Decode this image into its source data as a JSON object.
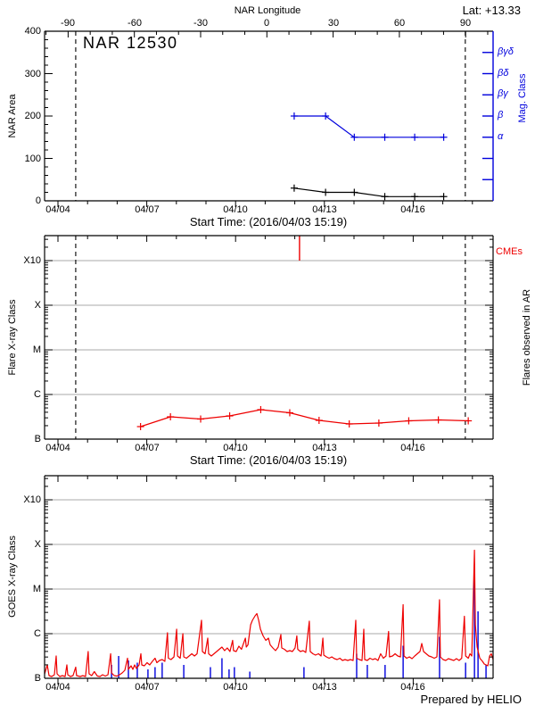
{
  "header": {
    "lon_axis_title": "NAR Longitude",
    "lat_label": "Lat: +13.33"
  },
  "footer": {
    "credit": "Prepared by HELIO"
  },
  "time_axis": {
    "start_time_label": "Start Time: (2016/04/03 15:19)",
    "tick_labels": [
      "04/04",
      "04/07",
      "04/10",
      "04/13",
      "04/16"
    ],
    "tick_days": [
      0,
      3,
      6,
      9,
      12
    ],
    "days_range": [
      -0.45,
      14.7
    ]
  },
  "longitude_axis": {
    "tick_labels": [
      "-90",
      "-60",
      "-30",
      "0",
      "30",
      "60",
      "90"
    ],
    "tick_values": [
      -90,
      -60,
      -30,
      0,
      30,
      60,
      90
    ],
    "minor_step_deg": 10
  },
  "colors": {
    "data_red": "#ee0000",
    "data_blue": "#0000dd",
    "grid_gray": "#a8a8a8",
    "axis_black": "#000000"
  },
  "chart_data": [
    {
      "id": "nar-area-mag-panel",
      "type": "line",
      "title": "NAR 12530",
      "ylabel": "NAR Area",
      "ylabel_right": "Mag. Class",
      "ylim": [
        0,
        400
      ],
      "yticks": [
        0,
        100,
        200,
        300,
        400
      ],
      "y_minor_step": 20,
      "x_days": [
        7.98,
        9.04,
        10.01,
        11.04,
        12.05,
        13.03
      ],
      "area_values": [
        30,
        20,
        20,
        10,
        10,
        10
      ],
      "mag_class_labels": [
        "β",
        "β",
        "α",
        "α",
        "α",
        "α"
      ],
      "mag_class_area_scale": [
        200,
        200,
        150,
        150,
        150,
        150
      ],
      "mag_axis_ticks": [
        {
          "area": 50,
          "label": ""
        },
        {
          "area": 100,
          "label": ""
        },
        {
          "area": 150,
          "label": "α"
        },
        {
          "area": 200,
          "label": "β"
        },
        {
          "area": 250,
          "label": "βγ"
        },
        {
          "area": 300,
          "label": "βδ"
        },
        {
          "area": 350,
          "label": "βγδ"
        }
      ],
      "limb_crossing_days": [
        0.6,
        13.76
      ]
    },
    {
      "id": "flares-in-ar-panel",
      "type": "line",
      "ylabel": "Flare X-ray Class",
      "right_label": "Flares observed in AR",
      "cme_label": "CMEs",
      "ytick_labels": [
        "B",
        "C",
        "M",
        "X",
        "X10"
      ],
      "ytick_levels": [
        0,
        1,
        2,
        3,
        4
      ],
      "ytop_level": 4.56,
      "flare_x_days": [
        2.79,
        3.8,
        4.82,
        5.8,
        6.85,
        7.83,
        8.82,
        9.84,
        10.84,
        11.85,
        12.85,
        13.86
      ],
      "flare_levels_above_B": [
        0.28,
        0.5,
        0.45,
        0.52,
        0.66,
        0.59,
        0.42,
        0.34,
        0.36,
        0.41,
        0.43,
        0.41
      ],
      "flare_class_labels": [
        "B1.9",
        "B3.2",
        "B2.8",
        "B3.3",
        "B4.6",
        "B3.9",
        "B2.6",
        "B2.2",
        "B2.3",
        "B2.6",
        "B2.7",
        "B2.6"
      ],
      "cme_days": [
        8.16
      ],
      "limb_crossing_days": [
        0.6,
        13.76
      ]
    },
    {
      "id": "goes-xray-panel",
      "type": "line",
      "ylabel": "GOES X-ray Class",
      "ytick_labels": [
        "B",
        "C",
        "M",
        "X",
        "X10"
      ],
      "ytick_levels": [
        0,
        1,
        2,
        3,
        4
      ],
      "ytop_level": 4.54,
      "flux_series_day_level": [
        [
          -0.45,
          0.1
        ],
        [
          -0.36,
          0.3
        ],
        [
          -0.3,
          0.06
        ],
        [
          -0.21,
          0.04
        ],
        [
          -0.12,
          0.08
        ],
        [
          -0.06,
          0.5
        ],
        [
          -0.03,
          0.1
        ],
        [
          0.06,
          0.04
        ],
        [
          0.15,
          0.06
        ],
        [
          0.24,
          0.04
        ],
        [
          0.3,
          0.3
        ],
        [
          0.33,
          0.08
        ],
        [
          0.42,
          0.04
        ],
        [
          0.51,
          0.06
        ],
        [
          0.6,
          0.25
        ],
        [
          0.63,
          0.06
        ],
        [
          0.75,
          0.04
        ],
        [
          0.84,
          0.06
        ],
        [
          0.93,
          0.04
        ],
        [
          1.02,
          0.6
        ],
        [
          1.05,
          0.1
        ],
        [
          1.14,
          0.06
        ],
        [
          1.23,
          0.15
        ],
        [
          1.33,
          0.05
        ],
        [
          1.42,
          0.04
        ],
        [
          1.51,
          0.08
        ],
        [
          1.6,
          0.05
        ],
        [
          1.69,
          0.08
        ],
        [
          1.78,
          0.55
        ],
        [
          1.81,
          0.12
        ],
        [
          1.9,
          0.06
        ],
        [
          1.99,
          0.05
        ],
        [
          2.08,
          0.08
        ],
        [
          2.17,
          0.12
        ],
        [
          2.26,
          0.18
        ],
        [
          2.35,
          0.45
        ],
        [
          2.38,
          0.2
        ],
        [
          2.47,
          0.28
        ],
        [
          2.53,
          0.2
        ],
        [
          2.59,
          0.3
        ],
        [
          2.65,
          0.22
        ],
        [
          2.74,
          0.3
        ],
        [
          2.8,
          0.55
        ],
        [
          2.83,
          0.3
        ],
        [
          2.92,
          0.28
        ],
        [
          3.01,
          0.35
        ],
        [
          3.1,
          0.3
        ],
        [
          3.19,
          0.38
        ],
        [
          3.28,
          0.45
        ],
        [
          3.34,
          0.35
        ],
        [
          3.43,
          0.4
        ],
        [
          3.52,
          0.42
        ],
        [
          3.61,
          0.38
        ],
        [
          3.7,
          1.02
        ],
        [
          3.73,
          0.45
        ],
        [
          3.82,
          0.42
        ],
        [
          3.92,
          0.48
        ],
        [
          4.01,
          1.1
        ],
        [
          4.04,
          0.5
        ],
        [
          4.13,
          0.45
        ],
        [
          4.22,
          1.0
        ],
        [
          4.25,
          0.48
        ],
        [
          4.34,
          0.45
        ],
        [
          4.43,
          0.5
        ],
        [
          4.52,
          0.55
        ],
        [
          4.61,
          0.5
        ],
        [
          4.7,
          0.55
        ],
        [
          4.85,
          1.3
        ],
        [
          4.88,
          0.6
        ],
        [
          4.97,
          0.55
        ],
        [
          5.06,
          0.9
        ],
        [
          5.09,
          0.55
        ],
        [
          5.18,
          0.5
        ],
        [
          5.27,
          0.55
        ],
        [
          5.36,
          0.6
        ],
        [
          5.45,
          0.65
        ],
        [
          5.54,
          0.7
        ],
        [
          5.63,
          0.62
        ],
        [
          5.72,
          0.68
        ],
        [
          5.81,
          0.6
        ],
        [
          5.9,
          0.85
        ],
        [
          5.93,
          0.62
        ],
        [
          6.02,
          0.6
        ],
        [
          6.11,
          0.72
        ],
        [
          6.2,
          0.65
        ],
        [
          6.33,
          0.9
        ],
        [
          6.36,
          0.7
        ],
        [
          6.42,
          0.75
        ],
        [
          6.51,
          1.2
        ],
        [
          6.57,
          1.3
        ],
        [
          6.66,
          1.4
        ],
        [
          6.72,
          1.45
        ],
        [
          6.78,
          1.3
        ],
        [
          6.84,
          1.1
        ],
        [
          6.93,
          0.95
        ],
        [
          7.02,
          0.85
        ],
        [
          7.11,
          0.9
        ],
        [
          7.17,
          0.75
        ],
        [
          7.26,
          0.68
        ],
        [
          7.35,
          0.62
        ],
        [
          7.44,
          0.7
        ],
        [
          7.53,
          0.98
        ],
        [
          7.56,
          0.68
        ],
        [
          7.65,
          0.65
        ],
        [
          7.74,
          0.6
        ],
        [
          7.83,
          0.62
        ],
        [
          7.92,
          0.6
        ],
        [
          8.01,
          0.68
        ],
        [
          8.07,
          0.95
        ],
        [
          8.1,
          0.65
        ],
        [
          8.19,
          0.6
        ],
        [
          8.28,
          0.62
        ],
        [
          8.37,
          0.58
        ],
        [
          8.49,
          1.28
        ],
        [
          8.52,
          0.6
        ],
        [
          8.61,
          0.55
        ],
        [
          8.7,
          0.52
        ],
        [
          8.8,
          0.55
        ],
        [
          8.89,
          0.5
        ],
        [
          8.95,
          0.9
        ],
        [
          8.98,
          0.52
        ],
        [
          9.07,
          0.48
        ],
        [
          9.16,
          0.45
        ],
        [
          9.25,
          0.48
        ],
        [
          9.34,
          0.44
        ],
        [
          9.43,
          0.42
        ],
        [
          9.52,
          0.45
        ],
        [
          9.61,
          0.4
        ],
        [
          9.7,
          0.42
        ],
        [
          9.79,
          0.4
        ],
        [
          9.88,
          0.42
        ],
        [
          9.97,
          0.4
        ],
        [
          10.06,
          1.3
        ],
        [
          10.09,
          0.45
        ],
        [
          10.18,
          0.42
        ],
        [
          10.27,
          0.4
        ],
        [
          10.33,
          1.1
        ],
        [
          10.36,
          0.42
        ],
        [
          10.45,
          0.4
        ],
        [
          10.54,
          0.45
        ],
        [
          10.63,
          0.42
        ],
        [
          10.72,
          0.44
        ],
        [
          10.81,
          0.4
        ],
        [
          10.9,
          0.55
        ],
        [
          10.99,
          0.45
        ],
        [
          11.08,
          0.5
        ],
        [
          11.17,
          1.05
        ],
        [
          11.2,
          0.48
        ],
        [
          11.3,
          0.5
        ],
        [
          11.39,
          0.55
        ],
        [
          11.48,
          0.5
        ],
        [
          11.57,
          0.48
        ],
        [
          11.66,
          1.65
        ],
        [
          11.69,
          0.5
        ],
        [
          11.78,
          0.45
        ],
        [
          11.87,
          0.48
        ],
        [
          11.96,
          0.44
        ],
        [
          12.05,
          0.5
        ],
        [
          12.14,
          0.55
        ],
        [
          12.23,
          0.6
        ],
        [
          12.29,
          0.78
        ],
        [
          12.35,
          0.6
        ],
        [
          12.44,
          0.55
        ],
        [
          12.53,
          0.5
        ],
        [
          12.62,
          0.48
        ],
        [
          12.71,
          0.45
        ],
        [
          12.8,
          0.48
        ],
        [
          12.89,
          1.76
        ],
        [
          12.92,
          0.48
        ],
        [
          13.01,
          0.42
        ],
        [
          13.1,
          0.4
        ],
        [
          13.19,
          0.44
        ],
        [
          13.28,
          0.42
        ],
        [
          13.37,
          0.4
        ],
        [
          13.46,
          0.44
        ],
        [
          13.55,
          0.4
        ],
        [
          13.64,
          0.45
        ],
        [
          13.73,
          1.39
        ],
        [
          13.77,
          0.5
        ],
        [
          13.86,
          0.45
        ],
        [
          13.92,
          0.55
        ],
        [
          13.98,
          0.5
        ],
        [
          14.07,
          2.87
        ],
        [
          14.1,
          1.2
        ],
        [
          14.16,
          0.7
        ],
        [
          14.25,
          0.45
        ],
        [
          14.34,
          0.38
        ],
        [
          14.4,
          0.32
        ],
        [
          14.46,
          0.3
        ],
        [
          14.52,
          0.28
        ],
        [
          14.58,
          0.5
        ],
        [
          14.64,
          0.55
        ],
        [
          14.7,
          0.42
        ]
      ],
      "ar_flare_spikes_day_level": [
        [
          1.81,
          0.3
        ],
        [
          2.05,
          0.5
        ],
        [
          2.38,
          0.4
        ],
        [
          2.68,
          0.35
        ],
        [
          3.04,
          0.2
        ],
        [
          3.28,
          0.25
        ],
        [
          3.52,
          0.35
        ],
        [
          4.25,
          0.3
        ],
        [
          5.15,
          0.25
        ],
        [
          5.54,
          0.45
        ],
        [
          5.78,
          0.2
        ],
        [
          5.96,
          0.25
        ],
        [
          6.48,
          0.15
        ],
        [
          8.31,
          0.25
        ],
        [
          10.09,
          0.55
        ],
        [
          10.45,
          0.3
        ],
        [
          11.05,
          0.3
        ],
        [
          11.66,
          0.73
        ],
        [
          12.89,
          0.93
        ],
        [
          13.77,
          0.35
        ],
        [
          14.07,
          2.32
        ],
        [
          14.19,
          1.5
        ],
        [
          14.46,
          0.3
        ]
      ]
    }
  ]
}
